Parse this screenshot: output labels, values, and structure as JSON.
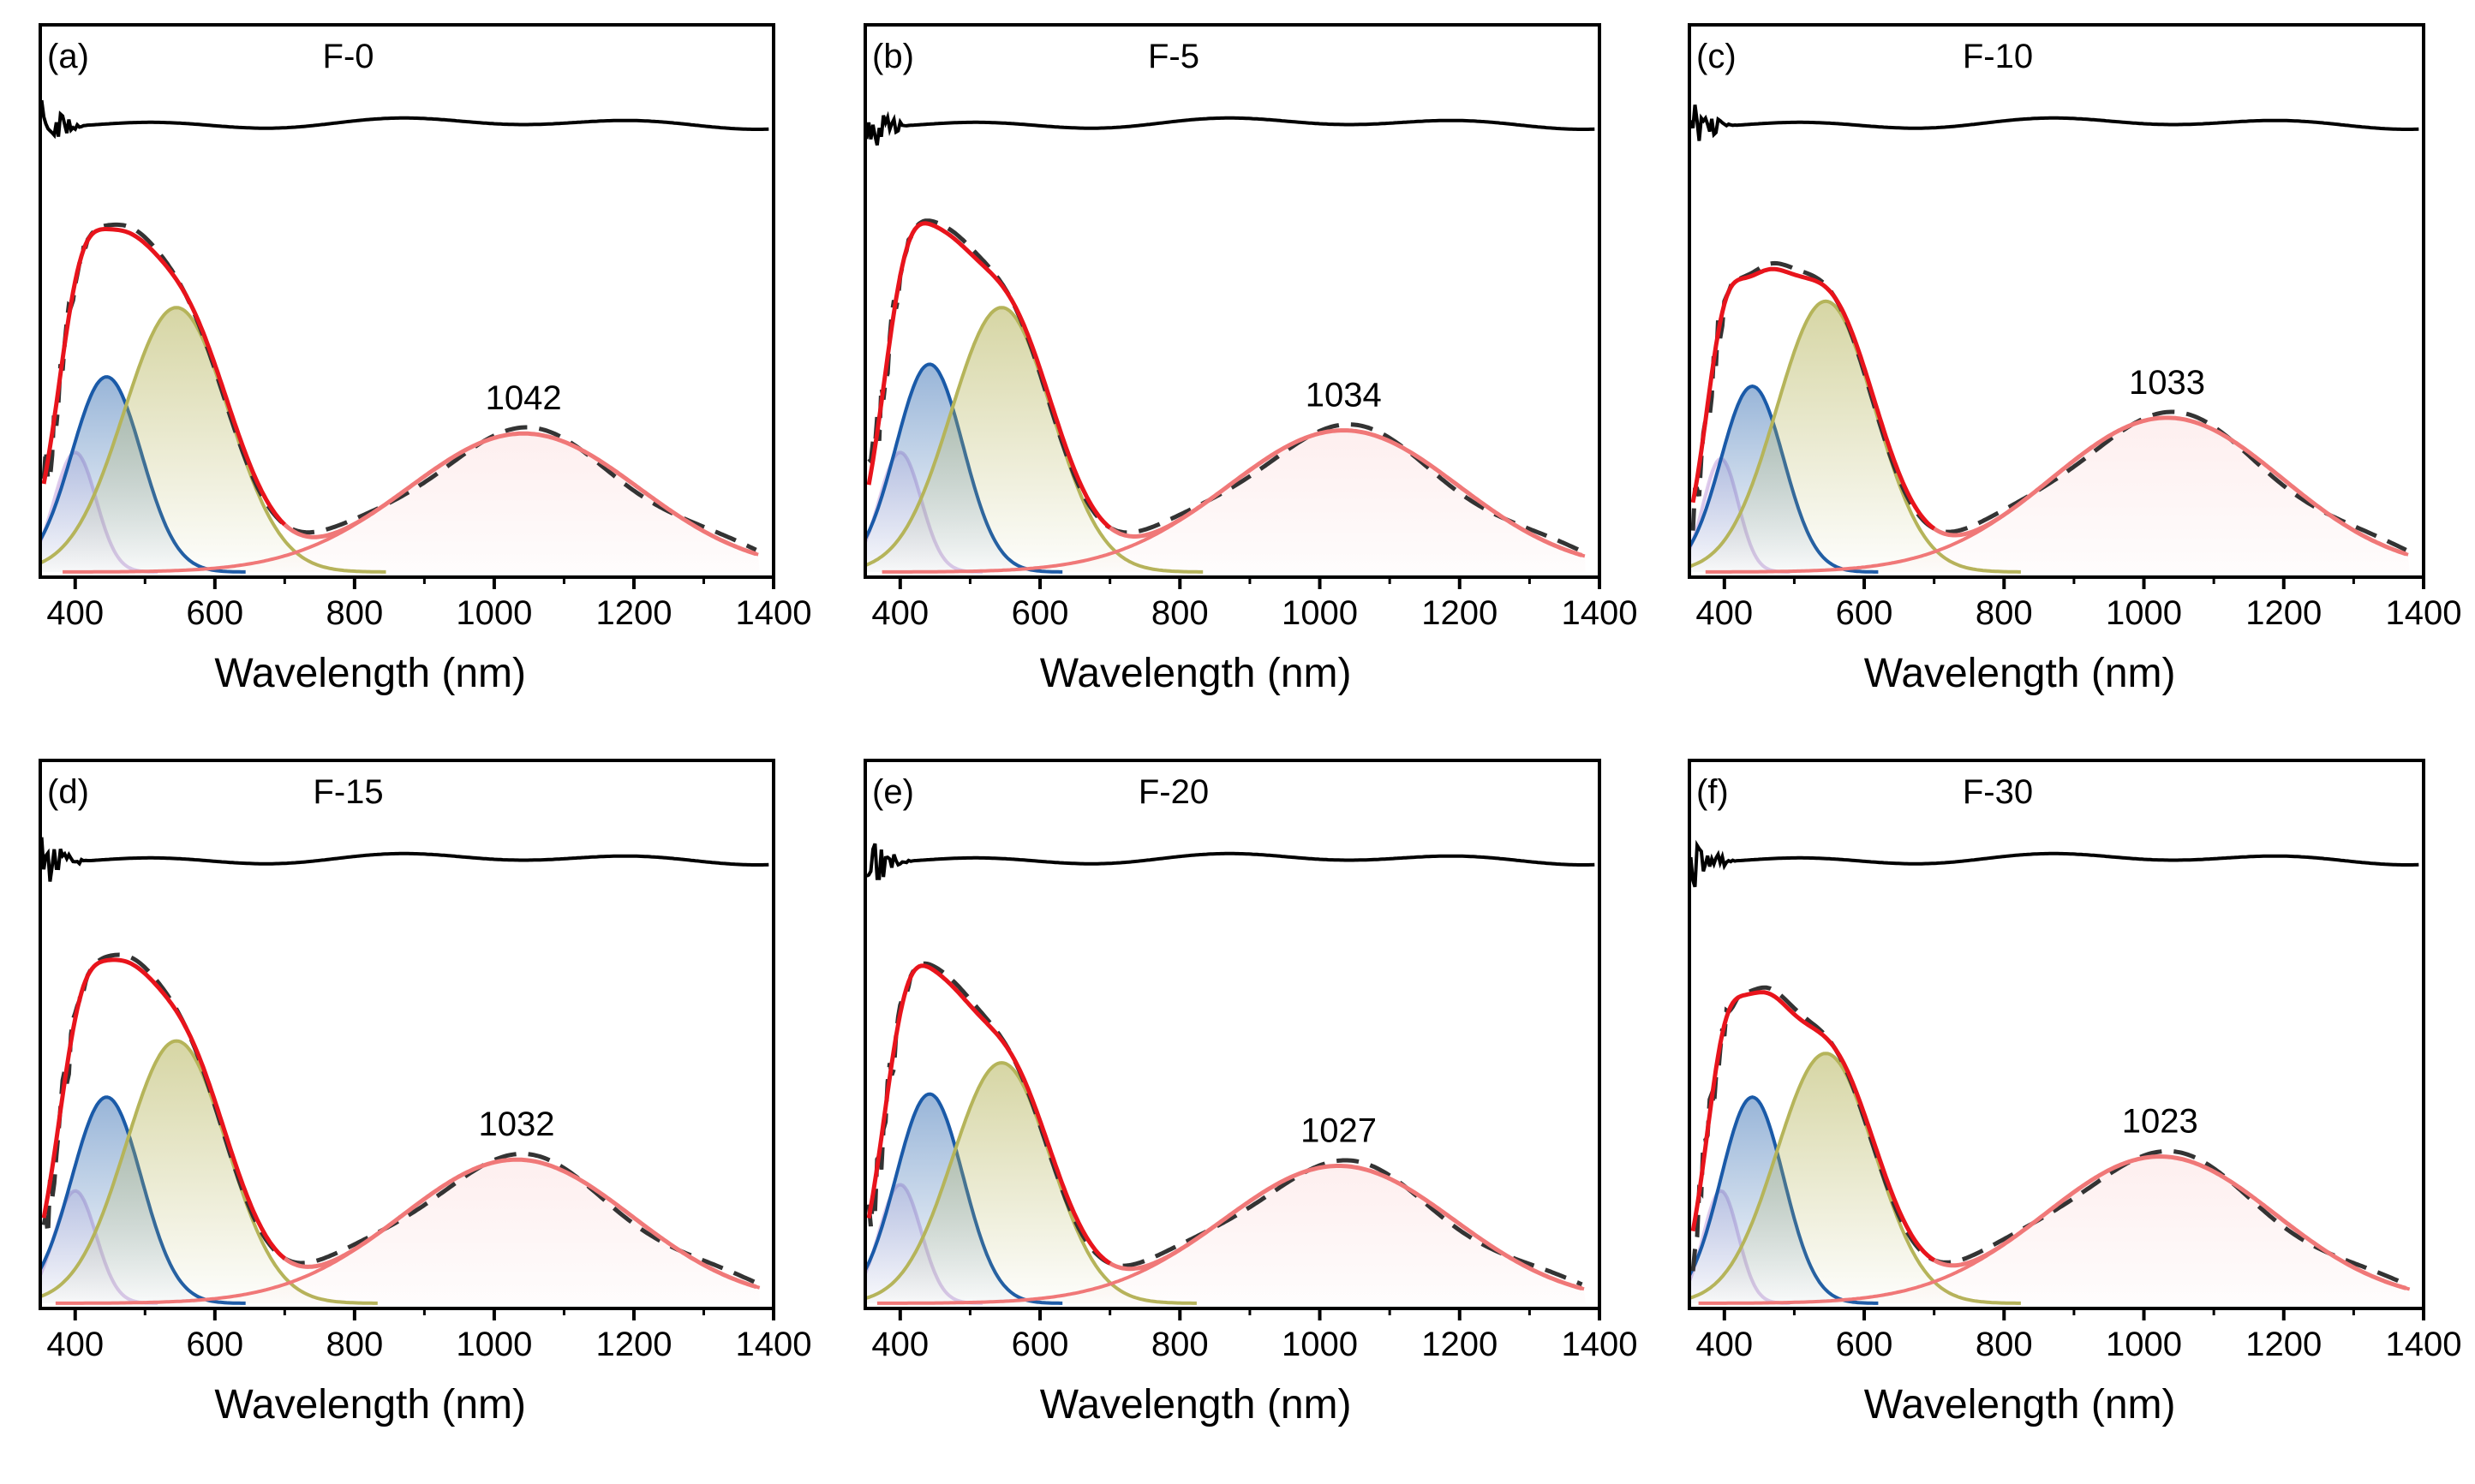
{
  "chart_data": [
    {
      "type": "line",
      "letter": "(a)",
      "title": "F-0",
      "xlabel": "Wavelength (nm)",
      "ylabel": "",
      "xlim": [
        350,
        1400
      ],
      "xticks": [
        400,
        600,
        800,
        1000,
        1200,
        1400
      ],
      "ylim": [
        0,
        1
      ],
      "peak_label": "1042",
      "peaks": [
        {
          "name": "violet",
          "center": 400,
          "width": 30,
          "height": 0.38
        },
        {
          "name": "blue",
          "center": 445,
          "width": 50,
          "height": 0.62
        },
        {
          "name": "olive",
          "center": 545,
          "width": 75,
          "height": 0.84
        },
        {
          "name": "pink",
          "center": 1042,
          "width": 165,
          "height": 0.44
        }
      ]
    },
    {
      "type": "line",
      "letter": "(b)",
      "title": "F-5",
      "xlabel": "Wavelength (nm)",
      "ylabel": "",
      "xlim": [
        350,
        1400
      ],
      "xticks": [
        400,
        600,
        800,
        1000,
        1200,
        1400
      ],
      "ylim": [
        0,
        1
      ],
      "peak_label": "1034",
      "peaks": [
        {
          "name": "violet",
          "center": 400,
          "width": 30,
          "height": 0.38
        },
        {
          "name": "blue",
          "center": 442,
          "width": 48,
          "height": 0.66
        },
        {
          "name": "olive",
          "center": 545,
          "width": 72,
          "height": 0.84
        },
        {
          "name": "pink",
          "center": 1034,
          "width": 165,
          "height": 0.45
        }
      ]
    },
    {
      "type": "line",
      "letter": "(c)",
      "title": "F-10",
      "xlabel": "Wavelength (nm)",
      "ylabel": "",
      "xlim": [
        350,
        1400
      ],
      "xticks": [
        400,
        600,
        800,
        1000,
        1200,
        1400
      ],
      "ylim": [
        0,
        1
      ],
      "peak_label": "1033",
      "peaks": [
        {
          "name": "violet",
          "center": 395,
          "width": 25,
          "height": 0.36
        },
        {
          "name": "blue",
          "center": 440,
          "width": 45,
          "height": 0.59
        },
        {
          "name": "olive",
          "center": 545,
          "width": 70,
          "height": 0.86
        },
        {
          "name": "pink",
          "center": 1033,
          "width": 165,
          "height": 0.49
        }
      ]
    },
    {
      "type": "line",
      "letter": "(d)",
      "title": "F-15",
      "xlabel": "Wavelength (nm)",
      "ylabel": "",
      "xlim": [
        350,
        1400
      ],
      "xticks": [
        400,
        600,
        800,
        1000,
        1200,
        1400
      ],
      "ylim": [
        0,
        1
      ],
      "peak_label": "1032",
      "peaks": [
        {
          "name": "violet",
          "center": 400,
          "width": 30,
          "height": 0.36
        },
        {
          "name": "blue",
          "center": 445,
          "width": 50,
          "height": 0.66
        },
        {
          "name": "olive",
          "center": 545,
          "width": 72,
          "height": 0.84
        },
        {
          "name": "pink",
          "center": 1032,
          "width": 165,
          "height": 0.46
        }
      ]
    },
    {
      "type": "line",
      "letter": "(e)",
      "title": "F-20",
      "xlabel": "Wavelength (nm)",
      "ylabel": "",
      "xlim": [
        350,
        1400
      ],
      "xticks": [
        400,
        600,
        800,
        1000,
        1200,
        1400
      ],
      "ylim": [
        0,
        1
      ],
      "peak_label": "1027",
      "peaks": [
        {
          "name": "violet",
          "center": 400,
          "width": 30,
          "height": 0.38
        },
        {
          "name": "blue",
          "center": 442,
          "width": 48,
          "height": 0.67
        },
        {
          "name": "olive",
          "center": 545,
          "width": 70,
          "height": 0.77
        },
        {
          "name": "pink",
          "center": 1027,
          "width": 165,
          "height": 0.44
        }
      ]
    },
    {
      "type": "line",
      "letter": "(f)",
      "title": "F-30",
      "xlabel": "Wavelength (nm)",
      "ylabel": "",
      "xlim": [
        350,
        1400
      ],
      "xticks": [
        400,
        600,
        800,
        1000,
        1200,
        1400
      ],
      "ylim": [
        0,
        1
      ],
      "peak_label": "1023",
      "peaks": [
        {
          "name": "violet",
          "center": 395,
          "width": 25,
          "height": 0.36
        },
        {
          "name": "blue",
          "center": 440,
          "width": 45,
          "height": 0.66
        },
        {
          "name": "olive",
          "center": 545,
          "width": 70,
          "height": 0.8
        },
        {
          "name": "pink",
          "center": 1023,
          "width": 165,
          "height": 0.47
        }
      ]
    }
  ],
  "colors": {
    "frame": "#000000",
    "residual": "#000000",
    "data_dashed": "#333333",
    "envelope_fit": "#e8141c",
    "violet": "#c8a8e0",
    "blue": "#1a5aa8",
    "olive": "#b5b45a",
    "pink": "#f07878"
  }
}
